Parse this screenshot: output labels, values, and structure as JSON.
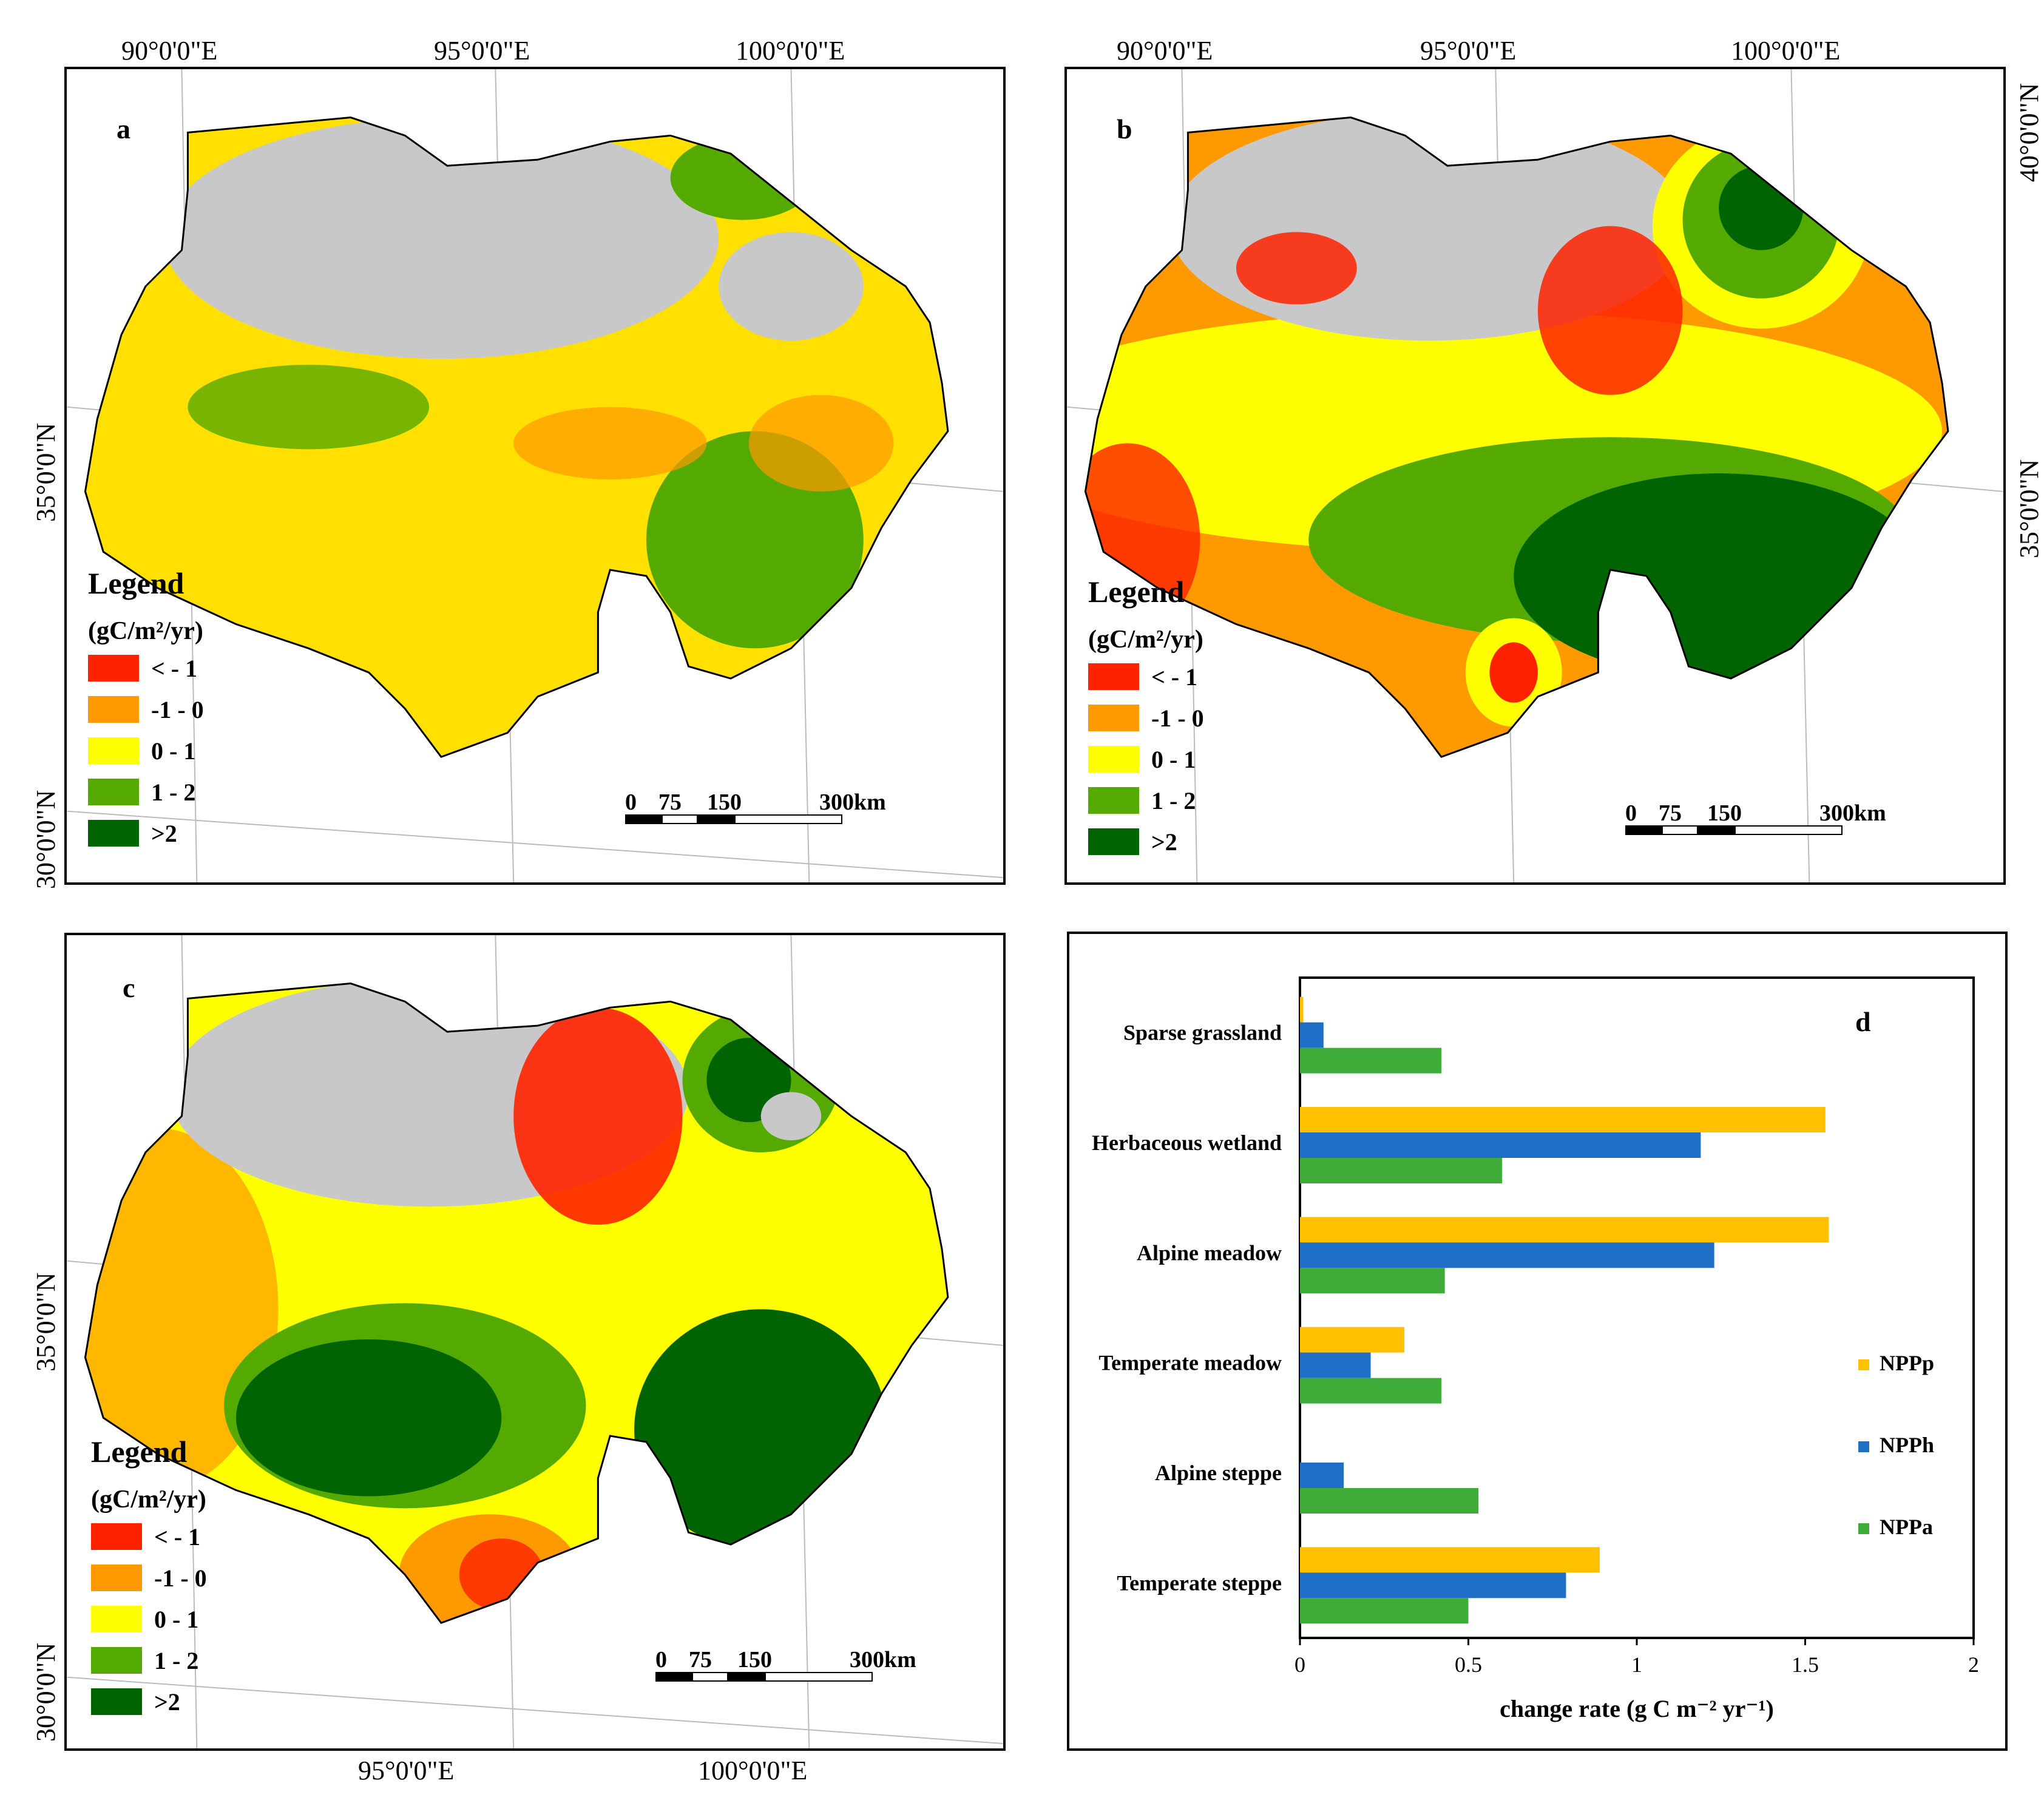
{
  "maps": {
    "a": {
      "label": "a",
      "lon_labels": [
        "90°0'0\"E",
        "95°0'0\"E",
        "100°0'0\"E"
      ],
      "lat_labels": [
        "35°0'0\"N",
        "30°0'0\"N"
      ]
    },
    "b": {
      "label": "b",
      "lon_labels": [
        "90°0'0\"E",
        "95°0'0\"E",
        "100°0'0\"E"
      ],
      "lat_labels_right": [
        "40°0'0\"N",
        "35°0'0\"N"
      ]
    },
    "c": {
      "label": "c",
      "lon_labels_bottom": [
        "95°0'0\"E",
        "100°0'0\"E"
      ],
      "lat_labels": [
        "35°0'0\"N",
        "30°0'0\"N"
      ]
    }
  },
  "legend": {
    "title": "Legend",
    "unit": "(gC/m²/yr)",
    "classes": [
      {
        "label": "< - 1",
        "color": "#ff2200"
      },
      {
        "label": "-1 - 0",
        "color": "#ff9900"
      },
      {
        "label": "0 - 1",
        "color": "#ffff00"
      },
      {
        "label": "1 - 2",
        "color": "#55aa00"
      },
      {
        "label": ">2",
        "color": "#006400"
      }
    ]
  },
  "scalebar": {
    "labels": [
      "0",
      "75",
      "150",
      "300km"
    ]
  },
  "chart_data": {
    "type": "bar",
    "orientation": "horizontal",
    "label": "d",
    "categories": [
      "Sparse grassland",
      "Herbaceous wetland",
      "Alpine meadow",
      "Temperate meadow",
      "Alpine steppe",
      "Temperate steppe"
    ],
    "series": [
      {
        "name": "NPPp",
        "color": "#ffc000",
        "values": [
          0.01,
          1.56,
          1.57,
          0.31,
          0.0,
          0.89
        ]
      },
      {
        "name": "NPPh",
        "color": "#1f6fc6",
        "values": [
          0.07,
          1.19,
          1.23,
          0.21,
          0.13,
          0.79
        ]
      },
      {
        "name": "NPPa",
        "color": "#3fac3a",
        "values": [
          0.42,
          0.6,
          0.43,
          0.42,
          0.53,
          0.5
        ]
      }
    ],
    "xlabel": "change rate (g C m⁻² yr⁻¹)",
    "xlim": [
      0,
      2
    ],
    "xticks": [
      "0",
      "0.5",
      "1",
      "1.5",
      "2"
    ],
    "legend_position": "right"
  }
}
